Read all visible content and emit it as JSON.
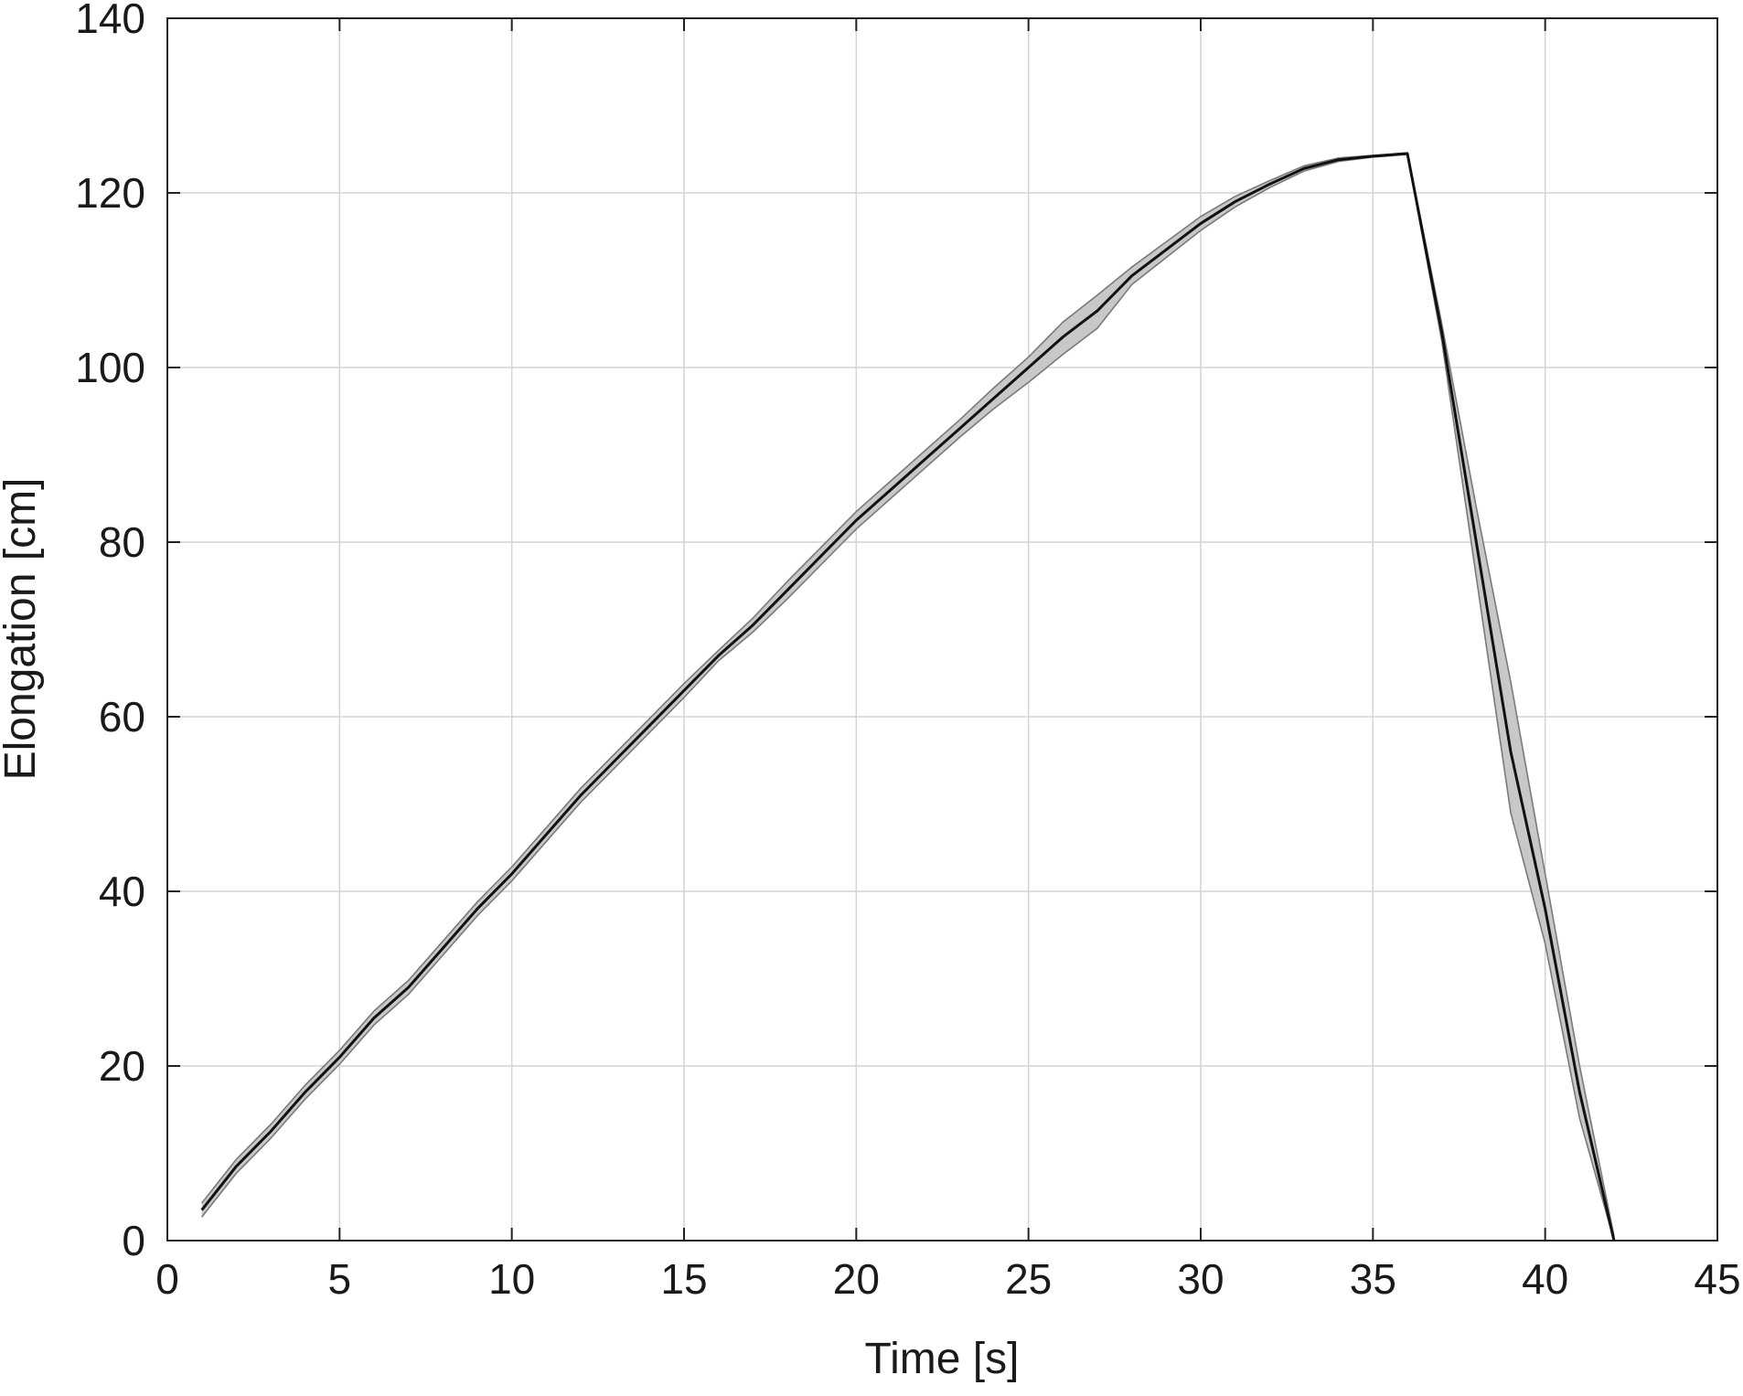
{
  "chart_data": {
    "type": "line",
    "title": "",
    "xlabel": "Time [s]",
    "ylabel": "Elongation [cm]",
    "xlim": [
      0,
      45
    ],
    "ylim": [
      0,
      140
    ],
    "xticks": [
      0,
      5,
      10,
      15,
      20,
      25,
      30,
      35,
      40,
      45
    ],
    "yticks": [
      0,
      20,
      40,
      60,
      80,
      100,
      120,
      140
    ],
    "grid": true,
    "legend": "none",
    "colors": {
      "mean_line": "#111111",
      "band_fill": "#c8c8c8",
      "band_edge": "#7a7a7a",
      "grid": "#d4d4d4",
      "axes": "#222222"
    },
    "series": [
      {
        "x": [
          1,
          2,
          3,
          4,
          5,
          6,
          7,
          8,
          9,
          10,
          11,
          12,
          13,
          14,
          15,
          16,
          17,
          18,
          19,
          20,
          21,
          22,
          23,
          24,
          25,
          26,
          27,
          28,
          29,
          30,
          31,
          32,
          33,
          34,
          35,
          36,
          37,
          38,
          39,
          40,
          41,
          42
        ],
        "values": [
          3.5,
          8.5,
          12.5,
          17,
          21,
          25.5,
          29,
          33.5,
          38,
          42,
          46.5,
          51,
          55,
          59,
          63,
          67,
          70.5,
          74.5,
          78.5,
          82.5,
          86,
          89.5,
          93,
          96.5,
          100,
          103.5,
          106.5,
          110.5,
          113.5,
          116.5,
          119,
          121,
          122.8,
          123.8,
          124.2,
          124.5,
          104,
          80,
          56,
          38,
          17,
          0
        ],
        "band_upper": [
          4.3,
          9.3,
          13.3,
          17.8,
          21.8,
          26.3,
          29.8,
          34.3,
          38.8,
          42.8,
          47.3,
          51.8,
          55.8,
          59.8,
          63.8,
          67.6,
          71.3,
          75.5,
          79.5,
          83.5,
          87,
          90.5,
          94,
          97.7,
          101.2,
          105.2,
          108.3,
          111.5,
          114.4,
          117.3,
          119.6,
          121.4,
          123.1,
          124,
          124.3,
          124.6,
          105,
          84,
          64,
          42,
          20,
          0.5
        ],
        "band_lower": [
          2.7,
          7.7,
          11.7,
          16.2,
          20.2,
          24.7,
          28.2,
          32.7,
          37.2,
          41.2,
          45.7,
          50.2,
          54.2,
          58.2,
          62.2,
          66.4,
          69.7,
          73.5,
          77.5,
          81.5,
          85,
          88.5,
          92,
          95.3,
          98.3,
          101.5,
          104.5,
          109.5,
          112.6,
          115.7,
          118.4,
          120.6,
          122.5,
          123.6,
          124.1,
          124.4,
          103,
          76,
          49,
          34,
          14,
          0
        ]
      }
    ]
  }
}
